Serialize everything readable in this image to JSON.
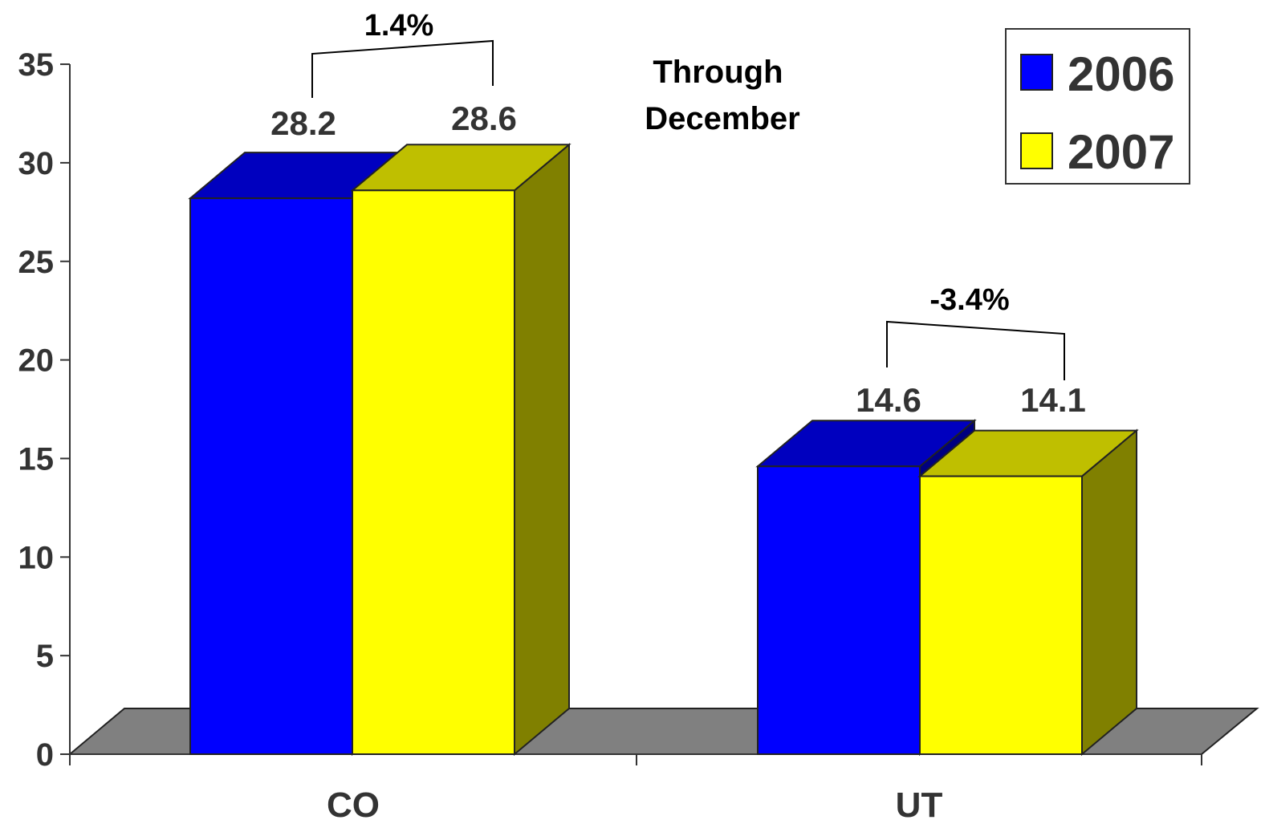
{
  "chart_data": {
    "type": "bar",
    "style": "3d-clustered",
    "subtitle_lines": [
      "Through",
      "December"
    ],
    "categories": [
      "CO",
      "UT"
    ],
    "series": [
      {
        "name": "2006",
        "values": [
          28.2,
          14.6
        ],
        "color": "#0000FF"
      },
      {
        "name": "2007",
        "values": [
          28.6,
          14.1
        ],
        "color": "#FFFF00"
      }
    ],
    "value_labels": [
      [
        "28.2",
        "28.6"
      ],
      [
        "14.6",
        "14.1"
      ]
    ],
    "percent_changes": [
      "1.4%",
      "-3.4%"
    ],
    "ylim": [
      0,
      35
    ],
    "yticks": [
      "0",
      "5",
      "10",
      "15",
      "20",
      "25",
      "30",
      "35"
    ],
    "xlabel": "",
    "ylabel": "",
    "grid": false,
    "legend_position": "top-right",
    "floor_color": "#808080"
  }
}
